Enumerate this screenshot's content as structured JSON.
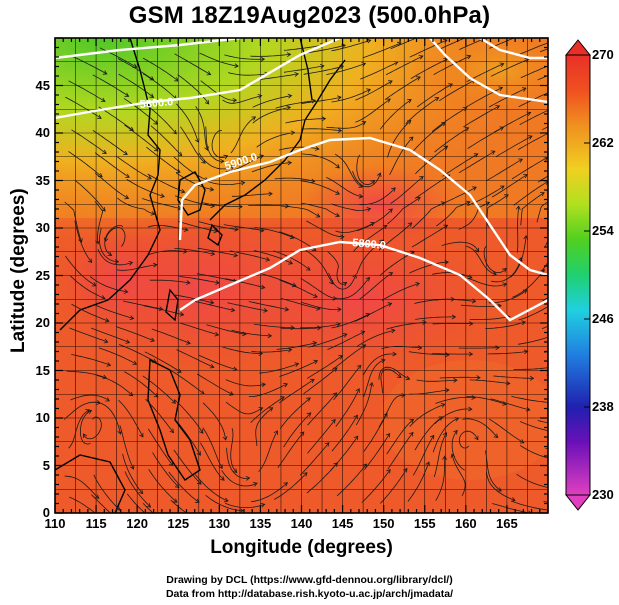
{
  "title": "GSM 18Z19Aug2023 (500.0hPa)",
  "axes": {
    "xlabel": "Longitude (degrees)",
    "ylabel": "Latitude  (degrees)",
    "xticks": [
      "110",
      "115",
      "120",
      "125",
      "130",
      "135",
      "140",
      "145",
      "150",
      "155",
      "160",
      "165"
    ],
    "yticks": [
      "0",
      "5",
      "10",
      "15",
      "20",
      "25",
      "30",
      "35",
      "40",
      "45"
    ],
    "xlim": [
      110,
      170
    ],
    "ylim": [
      0,
      50
    ]
  },
  "colorbar": {
    "ticks": [
      "230",
      "238",
      "246",
      "254",
      "262",
      "270"
    ],
    "range": [
      230,
      270
    ],
    "colors": [
      "#e040c0",
      "#5a0ab4",
      "#1e1eb4",
      "#2080e0",
      "#20d0e0",
      "#20d070",
      "#50d020",
      "#a0e020",
      "#e0e020",
      "#f0a020",
      "#f06020",
      "#e83020"
    ]
  },
  "contours": [
    {
      "label": "5900.0"
    },
    {
      "label": "5800.0"
    },
    {
      "label": "5800.0"
    }
  ],
  "credits": [
    "Drawing by DCL (https://www.gfd-dennou.org/library/dcl/)",
    "Data from http://database.rish.kyoto-u.ac.jp/arch/jmadata/"
  ]
}
